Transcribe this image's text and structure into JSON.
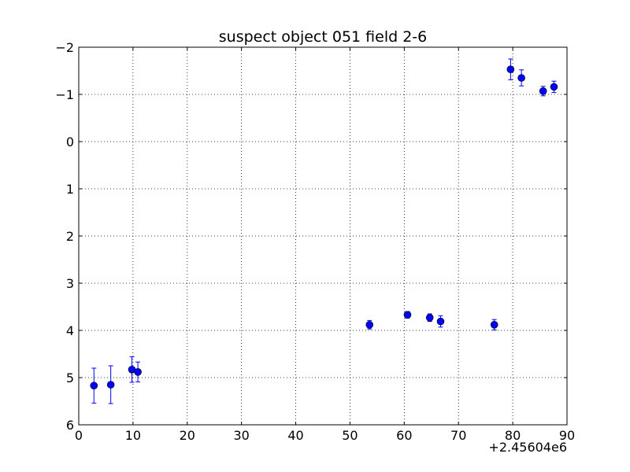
{
  "chart_data": {
    "type": "scatter",
    "title": "suspect object 051 field 2-6",
    "xlabel": "",
    "ylabel": "",
    "xlim": [
      0,
      90
    ],
    "ylim": [
      6,
      -2
    ],
    "y_inverted": true,
    "grid": true,
    "legend": "none",
    "x_offset_label": "+2.45604e6",
    "x_ticks": [
      0,
      10,
      20,
      30,
      40,
      50,
      60,
      70,
      80,
      90
    ],
    "x_tick_labels": [
      "0",
      "10",
      "20",
      "30",
      "40",
      "50",
      "60",
      "70",
      "80",
      "90"
    ],
    "y_ticks": [
      -2,
      -1,
      0,
      1,
      2,
      3,
      4,
      5,
      6
    ],
    "y_tick_labels": [
      "−2",
      "−1",
      "0",
      "1",
      "2",
      "3",
      "4",
      "5",
      "6"
    ],
    "marker_color": "#0000ff",
    "marker_edge_color": "#000000",
    "errorbar_color": "#0000ff",
    "series": [
      {
        "points": [
          {
            "x": 2.8,
            "y": 5.17,
            "yerr": 0.37
          },
          {
            "x": 5.9,
            "y": 5.15,
            "yerr": 0.4
          },
          {
            "x": 9.8,
            "y": 4.83,
            "yerr": 0.27
          },
          {
            "x": 10.9,
            "y": 4.88,
            "yerr": 0.21
          },
          {
            "x": 53.6,
            "y": 3.88,
            "yerr": 0.09
          },
          {
            "x": 60.6,
            "y": 3.67,
            "yerr": 0.07
          },
          {
            "x": 64.7,
            "y": 3.73,
            "yerr": 0.08
          },
          {
            "x": 66.7,
            "y": 3.81,
            "yerr": 0.12
          },
          {
            "x": 76.6,
            "y": 3.88,
            "yerr": 0.11
          },
          {
            "x": 79.6,
            "y": -1.53,
            "yerr": 0.22
          },
          {
            "x": 81.6,
            "y": -1.35,
            "yerr": 0.17
          },
          {
            "x": 85.6,
            "y": -1.07,
            "yerr": 0.1
          },
          {
            "x": 87.6,
            "y": -1.16,
            "yerr": 0.12
          }
        ]
      }
    ]
  }
}
